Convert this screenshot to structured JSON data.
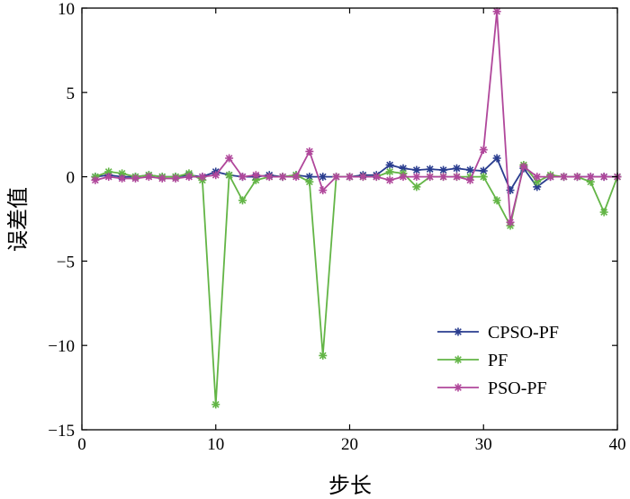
{
  "chart_data": {
    "type": "line",
    "title": "",
    "xlabel": "步长",
    "ylabel": "误差值",
    "xlim": [
      0,
      40
    ],
    "ylim": [
      -15,
      10
    ],
    "xticks": [
      0,
      10,
      20,
      30,
      40
    ],
    "yticks": [
      10,
      5,
      0,
      -5,
      -10,
      -15
    ],
    "xtick_labels": [
      "0",
      "10",
      "20",
      "30",
      "40"
    ],
    "ytick_labels": [
      "10",
      "5",
      "0",
      "−5",
      "−10",
      "−15"
    ],
    "grid": false,
    "legend_position": "bottom-right",
    "x": [
      1,
      2,
      3,
      4,
      5,
      6,
      7,
      8,
      9,
      10,
      11,
      12,
      13,
      14,
      15,
      16,
      17,
      18,
      19,
      20,
      21,
      22,
      23,
      24,
      25,
      26,
      27,
      28,
      29,
      30,
      31,
      32,
      33,
      34,
      35,
      36,
      37,
      38,
      39,
      40
    ],
    "series": [
      {
        "name": "CPSO-PF",
        "color": "#2a3d8f",
        "values": [
          0.0,
          0.1,
          0.0,
          0.0,
          0.1,
          0.0,
          0.0,
          0.1,
          0.0,
          0.3,
          0.1,
          0.0,
          0.0,
          0.1,
          0.0,
          0.1,
          0.0,
          0.0,
          0.0,
          0.0,
          0.1,
          0.1,
          0.7,
          0.5,
          0.4,
          0.45,
          0.4,
          0.5,
          0.4,
          0.35,
          1.1,
          -0.8,
          0.5,
          -0.6,
          0.0,
          0.0,
          0.0,
          0.0,
          0.0,
          0.0
        ]
      },
      {
        "name": "PF",
        "color": "#63b546",
        "values": [
          0.0,
          0.3,
          0.2,
          0.0,
          0.1,
          0.0,
          0.0,
          0.2,
          -0.2,
          -13.5,
          0.1,
          -1.4,
          -0.2,
          0.0,
          0.0,
          0.1,
          -0.3,
          -10.6,
          0.0,
          0.0,
          0.0,
          0.0,
          0.3,
          0.2,
          -0.6,
          0.0,
          0.0,
          0.0,
          0.0,
          0.0,
          -1.4,
          -2.9,
          0.7,
          -0.3,
          0.1,
          0.0,
          0.0,
          -0.3,
          -2.1,
          0.0
        ]
      },
      {
        "name": "PSO-PF",
        "color": "#b0479b",
        "values": [
          -0.2,
          0.0,
          -0.1,
          -0.1,
          0.0,
          -0.1,
          -0.1,
          0.0,
          0.0,
          0.1,
          1.1,
          0.0,
          0.1,
          0.0,
          0.0,
          0.0,
          1.5,
          -0.8,
          0.0,
          0.0,
          0.0,
          0.0,
          -0.2,
          0.0,
          0.0,
          0.0,
          0.0,
          0.0,
          -0.2,
          1.6,
          9.8,
          -2.7,
          0.6,
          0.0,
          0.0,
          0.0,
          0.0,
          0.0,
          0.0,
          0.0
        ]
      }
    ]
  }
}
